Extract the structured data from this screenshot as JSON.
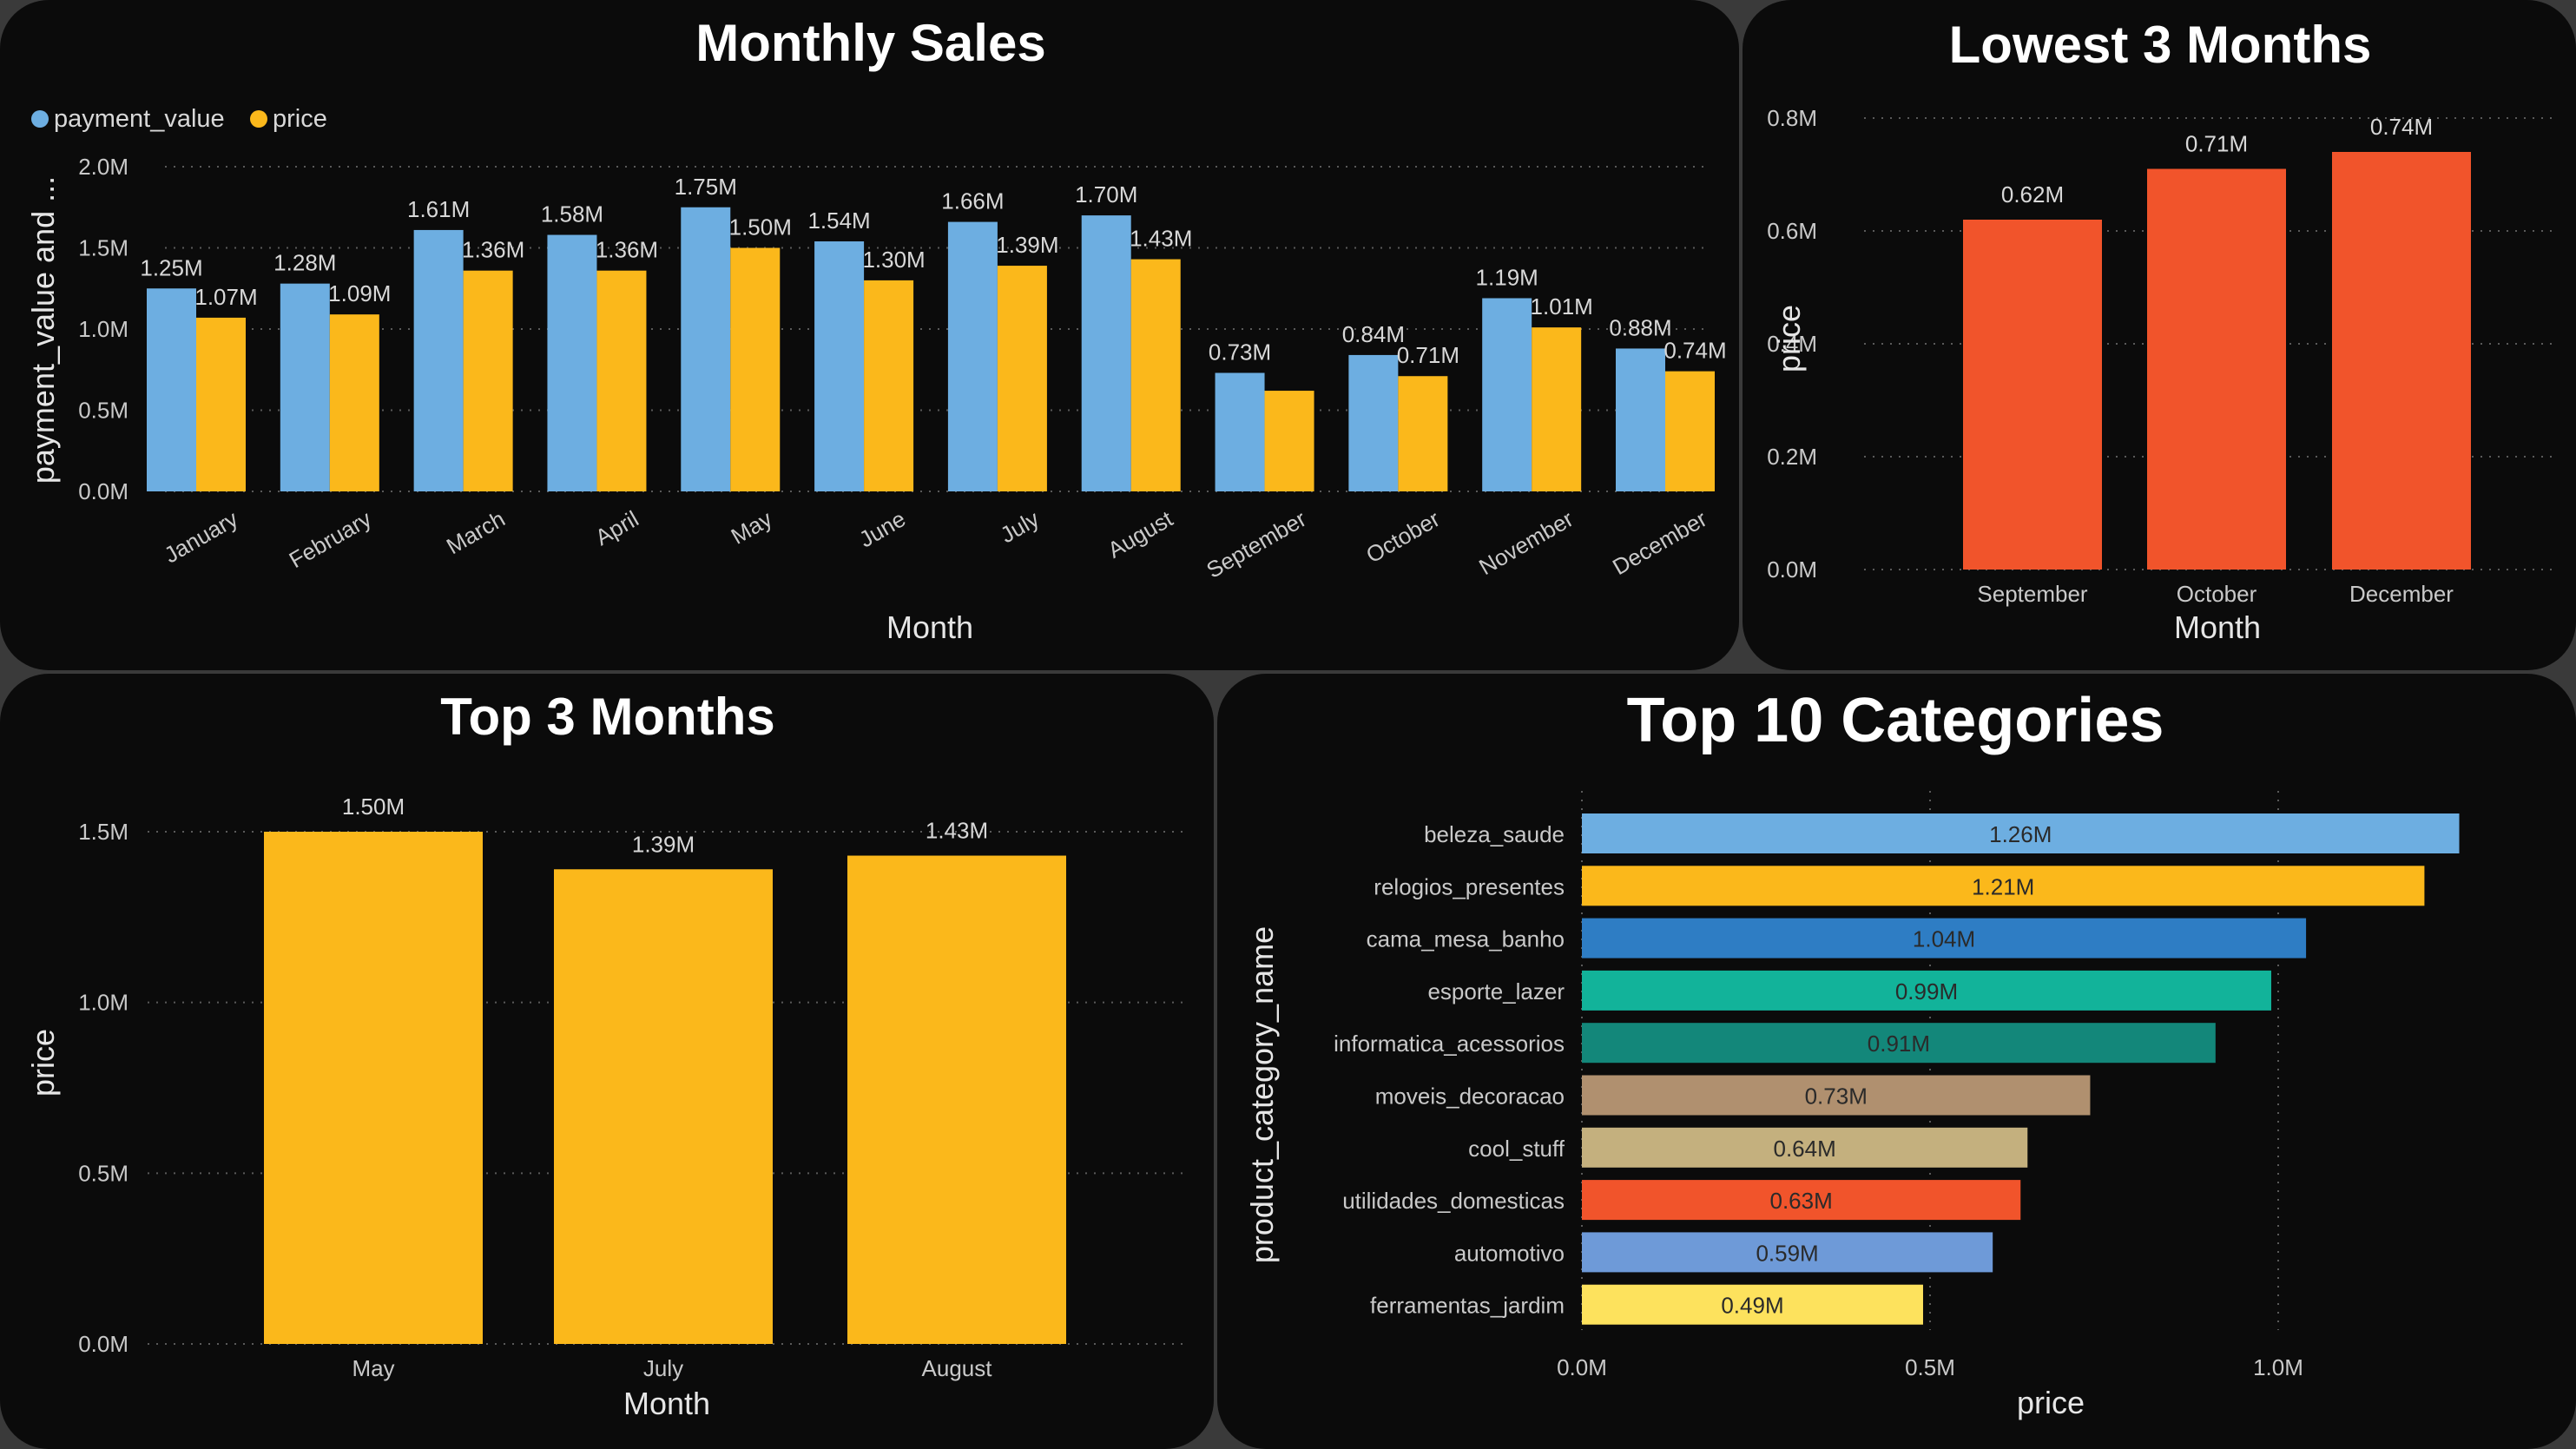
{
  "colors": {
    "payment_value": "#6daee1",
    "price": "#fbb81b",
    "lowest": "#f1542b",
    "panel_bg": "#0b0b0b",
    "page_bg": "#3a3a3a"
  },
  "chart_data": [
    {
      "id": "monthly",
      "type": "bar",
      "title": "Monthly Sales",
      "xlabel": "Month",
      "ylabel": "payment_value and ...",
      "legend": {
        "placement": "top-left",
        "entries": [
          "payment_value",
          "price"
        ]
      },
      "categories": [
        "January",
        "February",
        "March",
        "April",
        "May",
        "June",
        "July",
        "August",
        "September",
        "October",
        "November",
        "December"
      ],
      "series": [
        {
          "name": "payment_value",
          "color": "#6daee1",
          "values": [
            1.25,
            1.28,
            1.61,
            1.58,
            1.75,
            1.54,
            1.66,
            1.7,
            0.73,
            0.84,
            1.19,
            0.88
          ],
          "labels": [
            "1.25M",
            "1.28M",
            "1.61M",
            "1.58M",
            "1.75M",
            "1.54M",
            "1.66M",
            "1.70M",
            "0.73M",
            "0.84M",
            "1.19M",
            "0.88M"
          ]
        },
        {
          "name": "price",
          "color": "#fbb81b",
          "values": [
            1.07,
            1.09,
            1.36,
            1.36,
            1.5,
            1.3,
            1.39,
            1.43,
            0.62,
            0.71,
            1.01,
            0.74
          ],
          "labels": [
            "1.07M",
            "1.09M",
            "1.36M",
            "1.36M",
            "1.50M",
            "1.30M",
            "1.39M",
            "1.43M",
            "",
            "0.71M",
            "1.01M",
            "0.74M"
          ]
        }
      ],
      "ylim": [
        0,
        2.0
      ],
      "yticks": [
        0,
        0.5,
        1.0,
        1.5,
        2.0
      ],
      "ytick_labels": [
        "0.0M",
        "0.5M",
        "1.0M",
        "1.5M",
        "2.0M"
      ],
      "grid": true
    },
    {
      "id": "lowest",
      "type": "bar",
      "title": "Lowest 3 Months",
      "xlabel": "Month",
      "ylabel": "price",
      "categories": [
        "September",
        "October",
        "December"
      ],
      "values": [
        0.62,
        0.71,
        0.74
      ],
      "labels": [
        "0.62M",
        "0.71M",
        "0.74M"
      ],
      "color": "#f1542b",
      "ylim": [
        0,
        0.8
      ],
      "yticks": [
        0,
        0.2,
        0.4,
        0.6,
        0.8
      ],
      "ytick_labels": [
        "0.0M",
        "0.2M",
        "0.4M",
        "0.6M",
        "0.8M"
      ],
      "grid": true
    },
    {
      "id": "top3",
      "type": "bar",
      "title": "Top 3 Months",
      "xlabel": "Month",
      "ylabel": "price",
      "categories": [
        "May",
        "July",
        "August"
      ],
      "values": [
        1.5,
        1.39,
        1.43
      ],
      "labels": [
        "1.50M",
        "1.39M",
        "1.43M"
      ],
      "color": "#fbb81b",
      "ylim": [
        0,
        1.5
      ],
      "yticks": [
        0,
        0.5,
        1.0,
        1.5
      ],
      "ytick_labels": [
        "0.0M",
        "0.5M",
        "1.0M",
        "1.5M"
      ],
      "grid": true
    },
    {
      "id": "categories",
      "type": "bar",
      "orientation": "horizontal",
      "title": "Top 10 Categories",
      "xlabel": "price",
      "ylabel": "product_category_name",
      "categories": [
        "beleza_saude",
        "relogios_presentes",
        "cama_mesa_banho",
        "esporte_lazer",
        "informatica_acessorios",
        "moveis_decoracao",
        "cool_stuff",
        "utilidades_domesticas",
        "automotivo",
        "ferramentas_jardim"
      ],
      "values": [
        1.26,
        1.21,
        1.04,
        0.99,
        0.91,
        0.73,
        0.64,
        0.63,
        0.59,
        0.49
      ],
      "labels": [
        "1.26M",
        "1.21M",
        "1.04M",
        "0.99M",
        "0.91M",
        "0.73M",
        "0.64M",
        "0.63M",
        "0.59M",
        "0.49M"
      ],
      "colors": [
        "#6daee1",
        "#fbb81b",
        "#2e7dc4",
        "#12b39a",
        "#13877a",
        "#b0906f",
        "#c4b07e",
        "#f1542b",
        "#6e9ad8",
        "#fde25d"
      ],
      "label_colors": [
        "#2a2a2a",
        "#2a2a2a",
        "#2a2a2a",
        "#2a2a2a",
        "#2a2a2a",
        "#2a2a2a",
        "#2a2a2a",
        "#2a2a2a",
        "#2a2a2a",
        "#2a2a2a"
      ],
      "xlim": [
        0,
        1.35
      ],
      "xticks": [
        0,
        0.5,
        1.0
      ],
      "xtick_labels": [
        "0.0M",
        "0.5M",
        "1.0M"
      ],
      "grid": true
    }
  ]
}
